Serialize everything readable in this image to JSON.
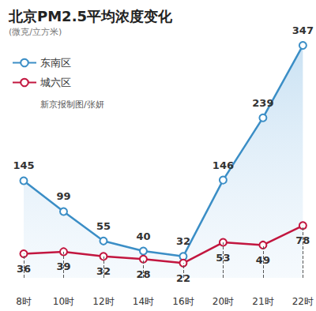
{
  "chart_data": {
    "type": "line",
    "title": "北京PM2.5平均浓度变化",
    "subtitle": "(微克/立方米)",
    "annotations": [
      "新京报制图/张妍"
    ],
    "categories": [
      "8时",
      "10时",
      "12时",
      "14时",
      "16时",
      "20时",
      "21时",
      "22时"
    ],
    "series": [
      {
        "name": "东南区",
        "type": "area",
        "color": "#3b8ec6",
        "values": [
          145,
          99,
          55,
          40,
          32,
          146,
          239,
          347
        ]
      },
      {
        "name": "城六区",
        "type": "line",
        "color": "#c2163f",
        "values": [
          36,
          39,
          32,
          28,
          22,
          53,
          49,
          78
        ]
      }
    ],
    "ylim": [
      0,
      350
    ],
    "yticks": [
      0,
      350
    ],
    "grid": false,
    "legend": "top-left",
    "data_labels": true,
    "tick_labels": "x",
    "marker": "circle"
  }
}
